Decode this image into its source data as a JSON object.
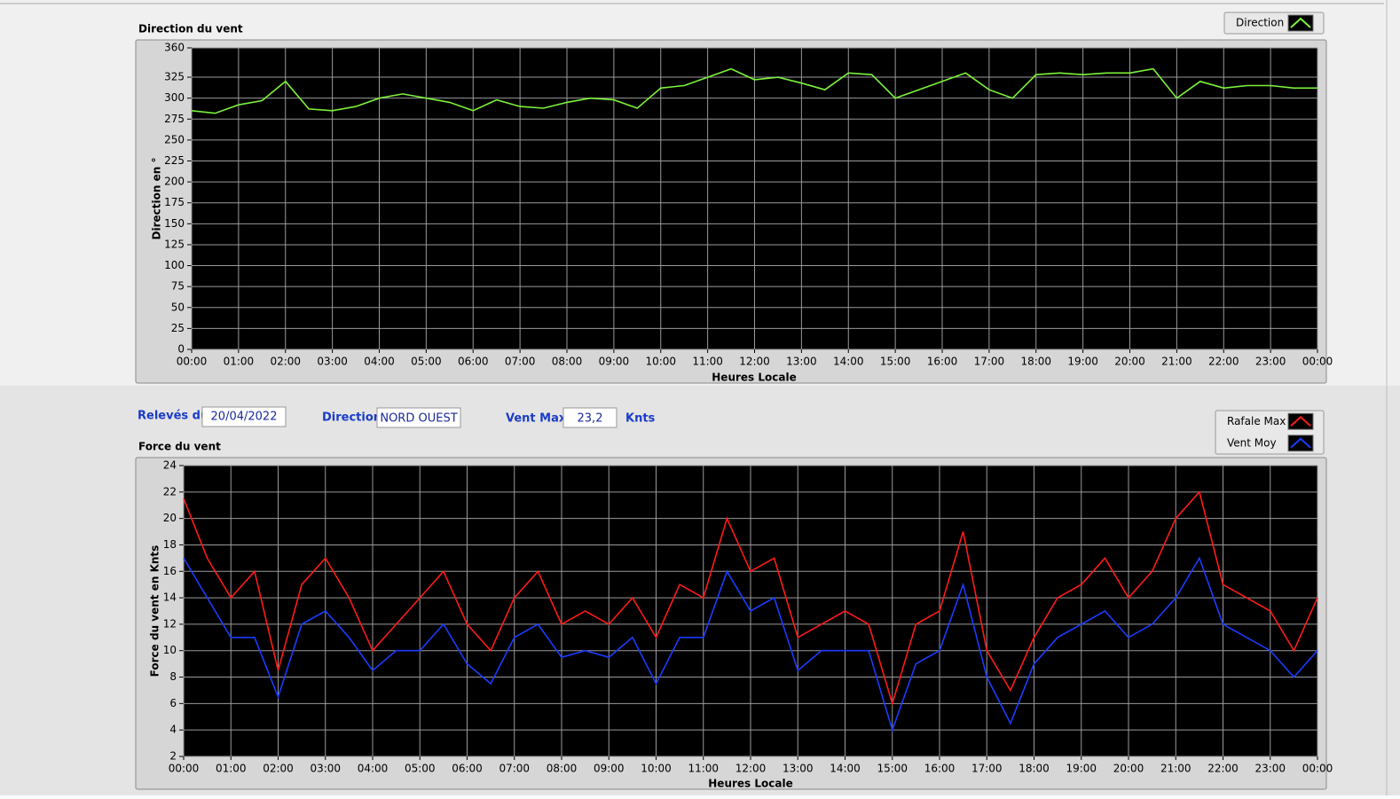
{
  "controls": {
    "date_label": "Relevés du",
    "date": "20/04/2022",
    "direction_label": "Direction",
    "direction": "NORD OUEST",
    "max_label": "Vent Max",
    "max": "23,2",
    "unit": "Knts"
  },
  "chart_data": [
    {
      "type": "line",
      "title": "Direction du vent",
      "ylabel": "Direction en °",
      "xlabel": "Heures Locale",
      "x": [
        0,
        0.5,
        1,
        1.5,
        2,
        2.5,
        3,
        3.5,
        4,
        4.5,
        5,
        5.5,
        6,
        6.5,
        7,
        7.5,
        8,
        8.5,
        9,
        9.5,
        10,
        10.5,
        11,
        11.5,
        12,
        12.5,
        13,
        13.5,
        14,
        14.5,
        15,
        15.5,
        16,
        16.5,
        17,
        17.5,
        18,
        18.5,
        19,
        19.5,
        20,
        20.5,
        21,
        21.5,
        22,
        22.5,
        23,
        23.5,
        24
      ],
      "series": [
        {
          "name": "Direction",
          "color": "#7cf23a",
          "values": [
            285,
            282,
            292,
            297,
            320,
            287,
            285,
            290,
            300,
            305,
            300,
            295,
            285,
            298,
            290,
            288,
            295,
            300,
            298,
            288,
            312,
            315,
            325,
            335,
            322,
            325,
            318,
            310,
            330,
            328,
            300,
            310,
            320,
            330,
            310,
            300,
            328,
            330,
            328,
            330,
            330,
            335,
            300,
            320,
            312,
            315,
            315,
            312,
            312
          ]
        }
      ],
      "xlim": [
        0,
        24
      ],
      "xticks": [
        {
          "value": 0,
          "label": "00:00"
        },
        {
          "value": 1,
          "label": "01:00"
        },
        {
          "value": 2,
          "label": "02:00"
        },
        {
          "value": 3,
          "label": "03:00"
        },
        {
          "value": 4,
          "label": "04:00"
        },
        {
          "value": 5,
          "label": "05:00"
        },
        {
          "value": 6,
          "label": "06:00"
        },
        {
          "value": 7,
          "label": "07:00"
        },
        {
          "value": 8,
          "label": "08:00"
        },
        {
          "value": 9,
          "label": "09:00"
        },
        {
          "value": 10,
          "label": "10:00"
        },
        {
          "value": 11,
          "label": "11:00"
        },
        {
          "value": 12,
          "label": "12:00"
        },
        {
          "value": 13,
          "label": "13:00"
        },
        {
          "value": 14,
          "label": "14:00"
        },
        {
          "value": 15,
          "label": "15:00"
        },
        {
          "value": 16,
          "label": "16:00"
        },
        {
          "value": 17,
          "label": "17:00"
        },
        {
          "value": 18,
          "label": "18:00"
        },
        {
          "value": 19,
          "label": "19:00"
        },
        {
          "value": 20,
          "label": "20:00"
        },
        {
          "value": 21,
          "label": "21:00"
        },
        {
          "value": 22,
          "label": "22:00"
        },
        {
          "value": 23,
          "label": "23:00"
        },
        {
          "value": 24,
          "label": "00:00"
        }
      ],
      "ylim": [
        0,
        360
      ],
      "yticks": [
        0,
        25,
        50,
        75,
        100,
        125,
        150,
        175,
        200,
        225,
        250,
        275,
        300,
        325,
        360
      ],
      "grid": true,
      "legend": "top-right"
    },
    {
      "type": "line",
      "title": "Force du vent",
      "ylabel": "Force du vent en Knts",
      "xlabel": "Heures Locale",
      "x": [
        0,
        0.5,
        1,
        1.5,
        2,
        2.5,
        3,
        3.5,
        4,
        4.5,
        5,
        5.5,
        6,
        6.5,
        7,
        7.5,
        8,
        8.5,
        9,
        9.5,
        10,
        10.5,
        11,
        11.5,
        12,
        12.5,
        13,
        13.5,
        14,
        14.5,
        15,
        15.5,
        16,
        16.5,
        17,
        17.5,
        18,
        18.5,
        19,
        19.5,
        20,
        20.5,
        21,
        21.5,
        22,
        22.5,
        23,
        23.5,
        24
      ],
      "series": [
        {
          "name": "Rafale Max",
          "color": "#ff1a1a",
          "values": [
            21.5,
            17,
            14,
            16,
            8.5,
            15,
            17,
            14,
            10,
            12,
            14,
            16,
            12,
            10,
            14,
            16,
            12,
            13,
            12,
            14,
            11,
            15,
            14,
            20,
            16,
            17,
            11,
            12,
            13,
            12,
            6,
            12,
            13,
            19,
            10,
            7,
            11,
            14,
            15,
            17,
            14,
            16,
            20,
            22,
            15,
            14,
            13,
            10,
            14
          ]
        },
        {
          "name": "Vent Moy",
          "color": "#1a3cff",
          "values": [
            17,
            14,
            11,
            11,
            6.5,
            12,
            13,
            11,
            8.5,
            10,
            10,
            12,
            9,
            7.5,
            11,
            12,
            9.5,
            10,
            9.5,
            11,
            7.5,
            11,
            11,
            16,
            13,
            14,
            8.5,
            10,
            10,
            10,
            4,
            9,
            10,
            15,
            8,
            4.5,
            9,
            11,
            12,
            13,
            11,
            12,
            14,
            17,
            12,
            11,
            10,
            8,
            10
          ]
        }
      ],
      "xlim": [
        0,
        24
      ],
      "xticks": [
        {
          "value": 0,
          "label": "00:00"
        },
        {
          "value": 1,
          "label": "01:00"
        },
        {
          "value": 2,
          "label": "02:00"
        },
        {
          "value": 3,
          "label": "03:00"
        },
        {
          "value": 4,
          "label": "04:00"
        },
        {
          "value": 5,
          "label": "05:00"
        },
        {
          "value": 6,
          "label": "06:00"
        },
        {
          "value": 7,
          "label": "07:00"
        },
        {
          "value": 8,
          "label": "08:00"
        },
        {
          "value": 9,
          "label": "09:00"
        },
        {
          "value": 10,
          "label": "10:00"
        },
        {
          "value": 11,
          "label": "11:00"
        },
        {
          "value": 12,
          "label": "12:00"
        },
        {
          "value": 13,
          "label": "13:00"
        },
        {
          "value": 14,
          "label": "14:00"
        },
        {
          "value": 15,
          "label": "15:00"
        },
        {
          "value": 16,
          "label": "16:00"
        },
        {
          "value": 17,
          "label": "17:00"
        },
        {
          "value": 18,
          "label": "18:00"
        },
        {
          "value": 19,
          "label": "19:00"
        },
        {
          "value": 20,
          "label": "20:00"
        },
        {
          "value": 21,
          "label": "21:00"
        },
        {
          "value": 22,
          "label": "22:00"
        },
        {
          "value": 23,
          "label": "23:00"
        },
        {
          "value": 24,
          "label": "00:00"
        }
      ],
      "ylim": [
        2,
        24
      ],
      "yticks": [
        2,
        4,
        6,
        8,
        10,
        12,
        14,
        16,
        18,
        20,
        22,
        24
      ],
      "grid": true,
      "legend": "top-right"
    }
  ]
}
